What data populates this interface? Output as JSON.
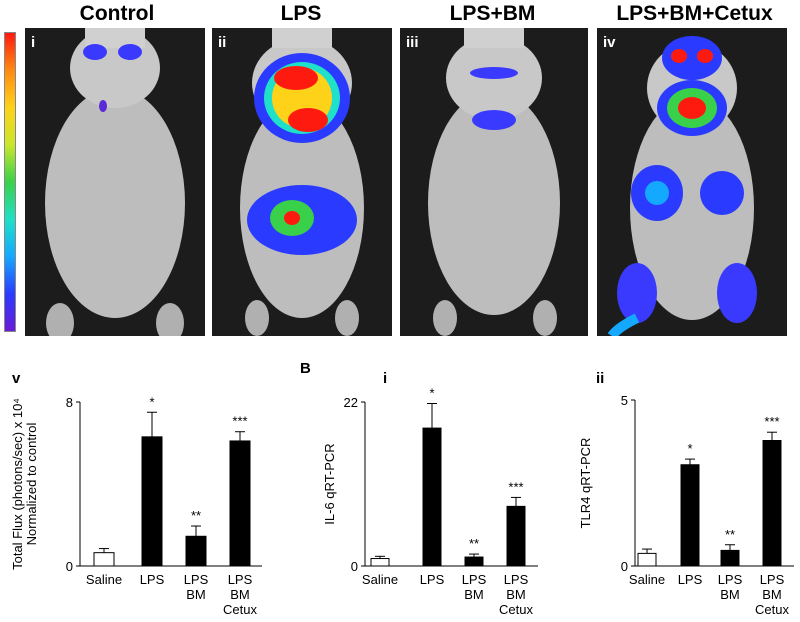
{
  "panels": [
    {
      "title": "Control",
      "roman": "i"
    },
    {
      "title": "LPS",
      "roman": "ii"
    },
    {
      "title": "LPS+BM",
      "roman": "iii"
    },
    {
      "title": "LPS+BM+Cetux",
      "roman": "iv"
    }
  ],
  "labels": {
    "v": "v",
    "b": "B",
    "bi": "i",
    "bii": "ii"
  },
  "colors": {
    "bar_fill": "#000000",
    "control_fill": "#ffffff",
    "scale": [
      "#6a1bd6",
      "#2a3bff",
      "#15a8ff",
      "#1fe0c8",
      "#3ad14a",
      "#c9e62d",
      "#ffd21a",
      "#ff8a12",
      "#ff1a10"
    ]
  },
  "chart_data": [
    {
      "type": "bar",
      "ylabel": "Total Flux (photons/sec) x 10⁴",
      "ylabel2": "Normalized to control",
      "ylim": [
        0,
        8
      ],
      "yticks": [
        "0",
        "8"
      ],
      "categories": [
        [
          "Saline"
        ],
        [
          "LPS"
        ],
        [
          "LPS",
          "BM"
        ],
        [
          "LPS",
          "BM",
          "Cetux"
        ]
      ],
      "values": [
        0.65,
        6.3,
        1.45,
        6.1
      ],
      "errors": [
        0.2,
        1.2,
        0.5,
        0.45
      ],
      "significance": [
        "",
        "*",
        "**",
        "***"
      ]
    },
    {
      "type": "bar",
      "ylabel": "IL-6 qRT-PCR",
      "ylim": [
        0,
        22
      ],
      "yticks": [
        "0",
        "22"
      ],
      "categories": [
        [
          "Saline"
        ],
        [
          "LPS"
        ],
        [
          "LPS",
          "BM"
        ],
        [
          "LPS",
          "BM",
          "Cetux"
        ]
      ],
      "values": [
        1.0,
        18.5,
        1.2,
        8.0
      ],
      "errors": [
        0.3,
        3.3,
        0.4,
        1.2
      ],
      "significance": [
        "",
        "*",
        "**",
        "***"
      ]
    },
    {
      "type": "bar",
      "ylabel": "TLR4 qRT-PCR",
      "ylim": [
        0,
        5
      ],
      "yticks": [
        "0",
        "5"
      ],
      "categories": [
        [
          "Saline"
        ],
        [
          "LPS"
        ],
        [
          "LPS",
          "BM"
        ],
        [
          "LPS",
          "BM",
          "Cetux"
        ]
      ],
      "values": [
        0.38,
        3.05,
        0.47,
        3.78
      ],
      "errors": [
        0.13,
        0.17,
        0.17,
        0.25
      ],
      "significance": [
        "",
        "*",
        "**",
        "***"
      ]
    }
  ]
}
